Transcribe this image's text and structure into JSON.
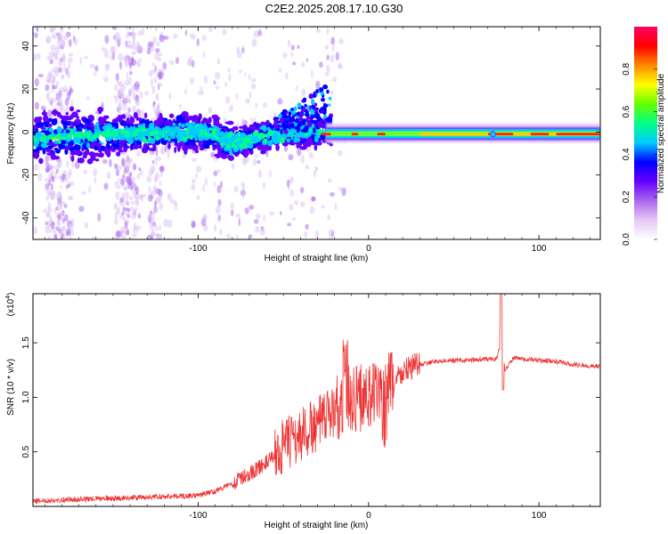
{
  "title": "C2E2.2025.208.17.10.G30",
  "chart_data": [
    {
      "type": "heatmap",
      "xlabel": "Height of straight line (km)",
      "ylabel": "Frequency (Hz)",
      "xlim": [
        -197,
        136
      ],
      "ylim": [
        -50,
        49
      ],
      "xticks": [
        -100,
        0,
        100
      ],
      "yticks": [
        -40,
        -20,
        0,
        20,
        40
      ],
      "colorbar": {
        "label": "Normalized spectral amplitude",
        "range": [
          0,
          1
        ],
        "ticks": [
          0.0,
          0.2,
          0.4,
          0.6,
          0.8
        ],
        "colors": [
          "#ffffff",
          "#e6c8f7",
          "#aa66ee",
          "#6600ff",
          "#0000ff",
          "#00ccff",
          "#00ff88",
          "#66ff00",
          "#ffff00",
          "#ff8800",
          "#ff0000",
          "#ff0066"
        ]
      },
      "ridge": [
        {
          "x": -197,
          "y": -3
        },
        {
          "x": -150,
          "y": -1
        },
        {
          "x": -100,
          "y": 0
        },
        {
          "x": -80,
          "y": -5
        },
        {
          "x": -50,
          "y": 0
        },
        {
          "x": -25,
          "y": 0
        },
        {
          "x": 0,
          "y": -1
        },
        {
          "x": 136,
          "y": -1
        }
      ]
    },
    {
      "type": "line",
      "xlabel": "Height of straight line (km)",
      "ylabel": "SNR (10 * v/v)",
      "yscale_label": "(x10",
      "yscale_exp": "4",
      "xlim": [
        -197,
        136
      ],
      "ylim": [
        0,
        19500
      ],
      "xticks": [
        -100,
        0,
        100
      ],
      "yticks": [
        0.5,
        1.0,
        1.5
      ],
      "ytick_labels": [
        "0.5",
        "1.0",
        "1.5"
      ],
      "color": "#ee3333",
      "series": [
        {
          "x": [
            -197,
            -180,
            -160,
            -140,
            -120,
            -100,
            -90,
            -80,
            -70,
            -60,
            -50,
            -40,
            -30,
            -25,
            -20,
            -15,
            -10,
            -5,
            0,
            5,
            10,
            15,
            20,
            25,
            30,
            40,
            50,
            60,
            70,
            75,
            78,
            80,
            85,
            90,
            100,
            110,
            120,
            136
          ],
          "y": [
            500,
            600,
            700,
            800,
            900,
            1000,
            1400,
            2100,
            3000,
            4000,
            5500,
            6500,
            7500,
            8000,
            9000,
            9500,
            10000,
            10000,
            10200,
            10200,
            10800,
            11500,
            12300,
            12800,
            13000,
            13300,
            13400,
            13400,
            13500,
            13500,
            15000,
            12500,
            13600,
            13500,
            13400,
            13300,
            13000,
            12800
          ]
        }
      ]
    }
  ]
}
